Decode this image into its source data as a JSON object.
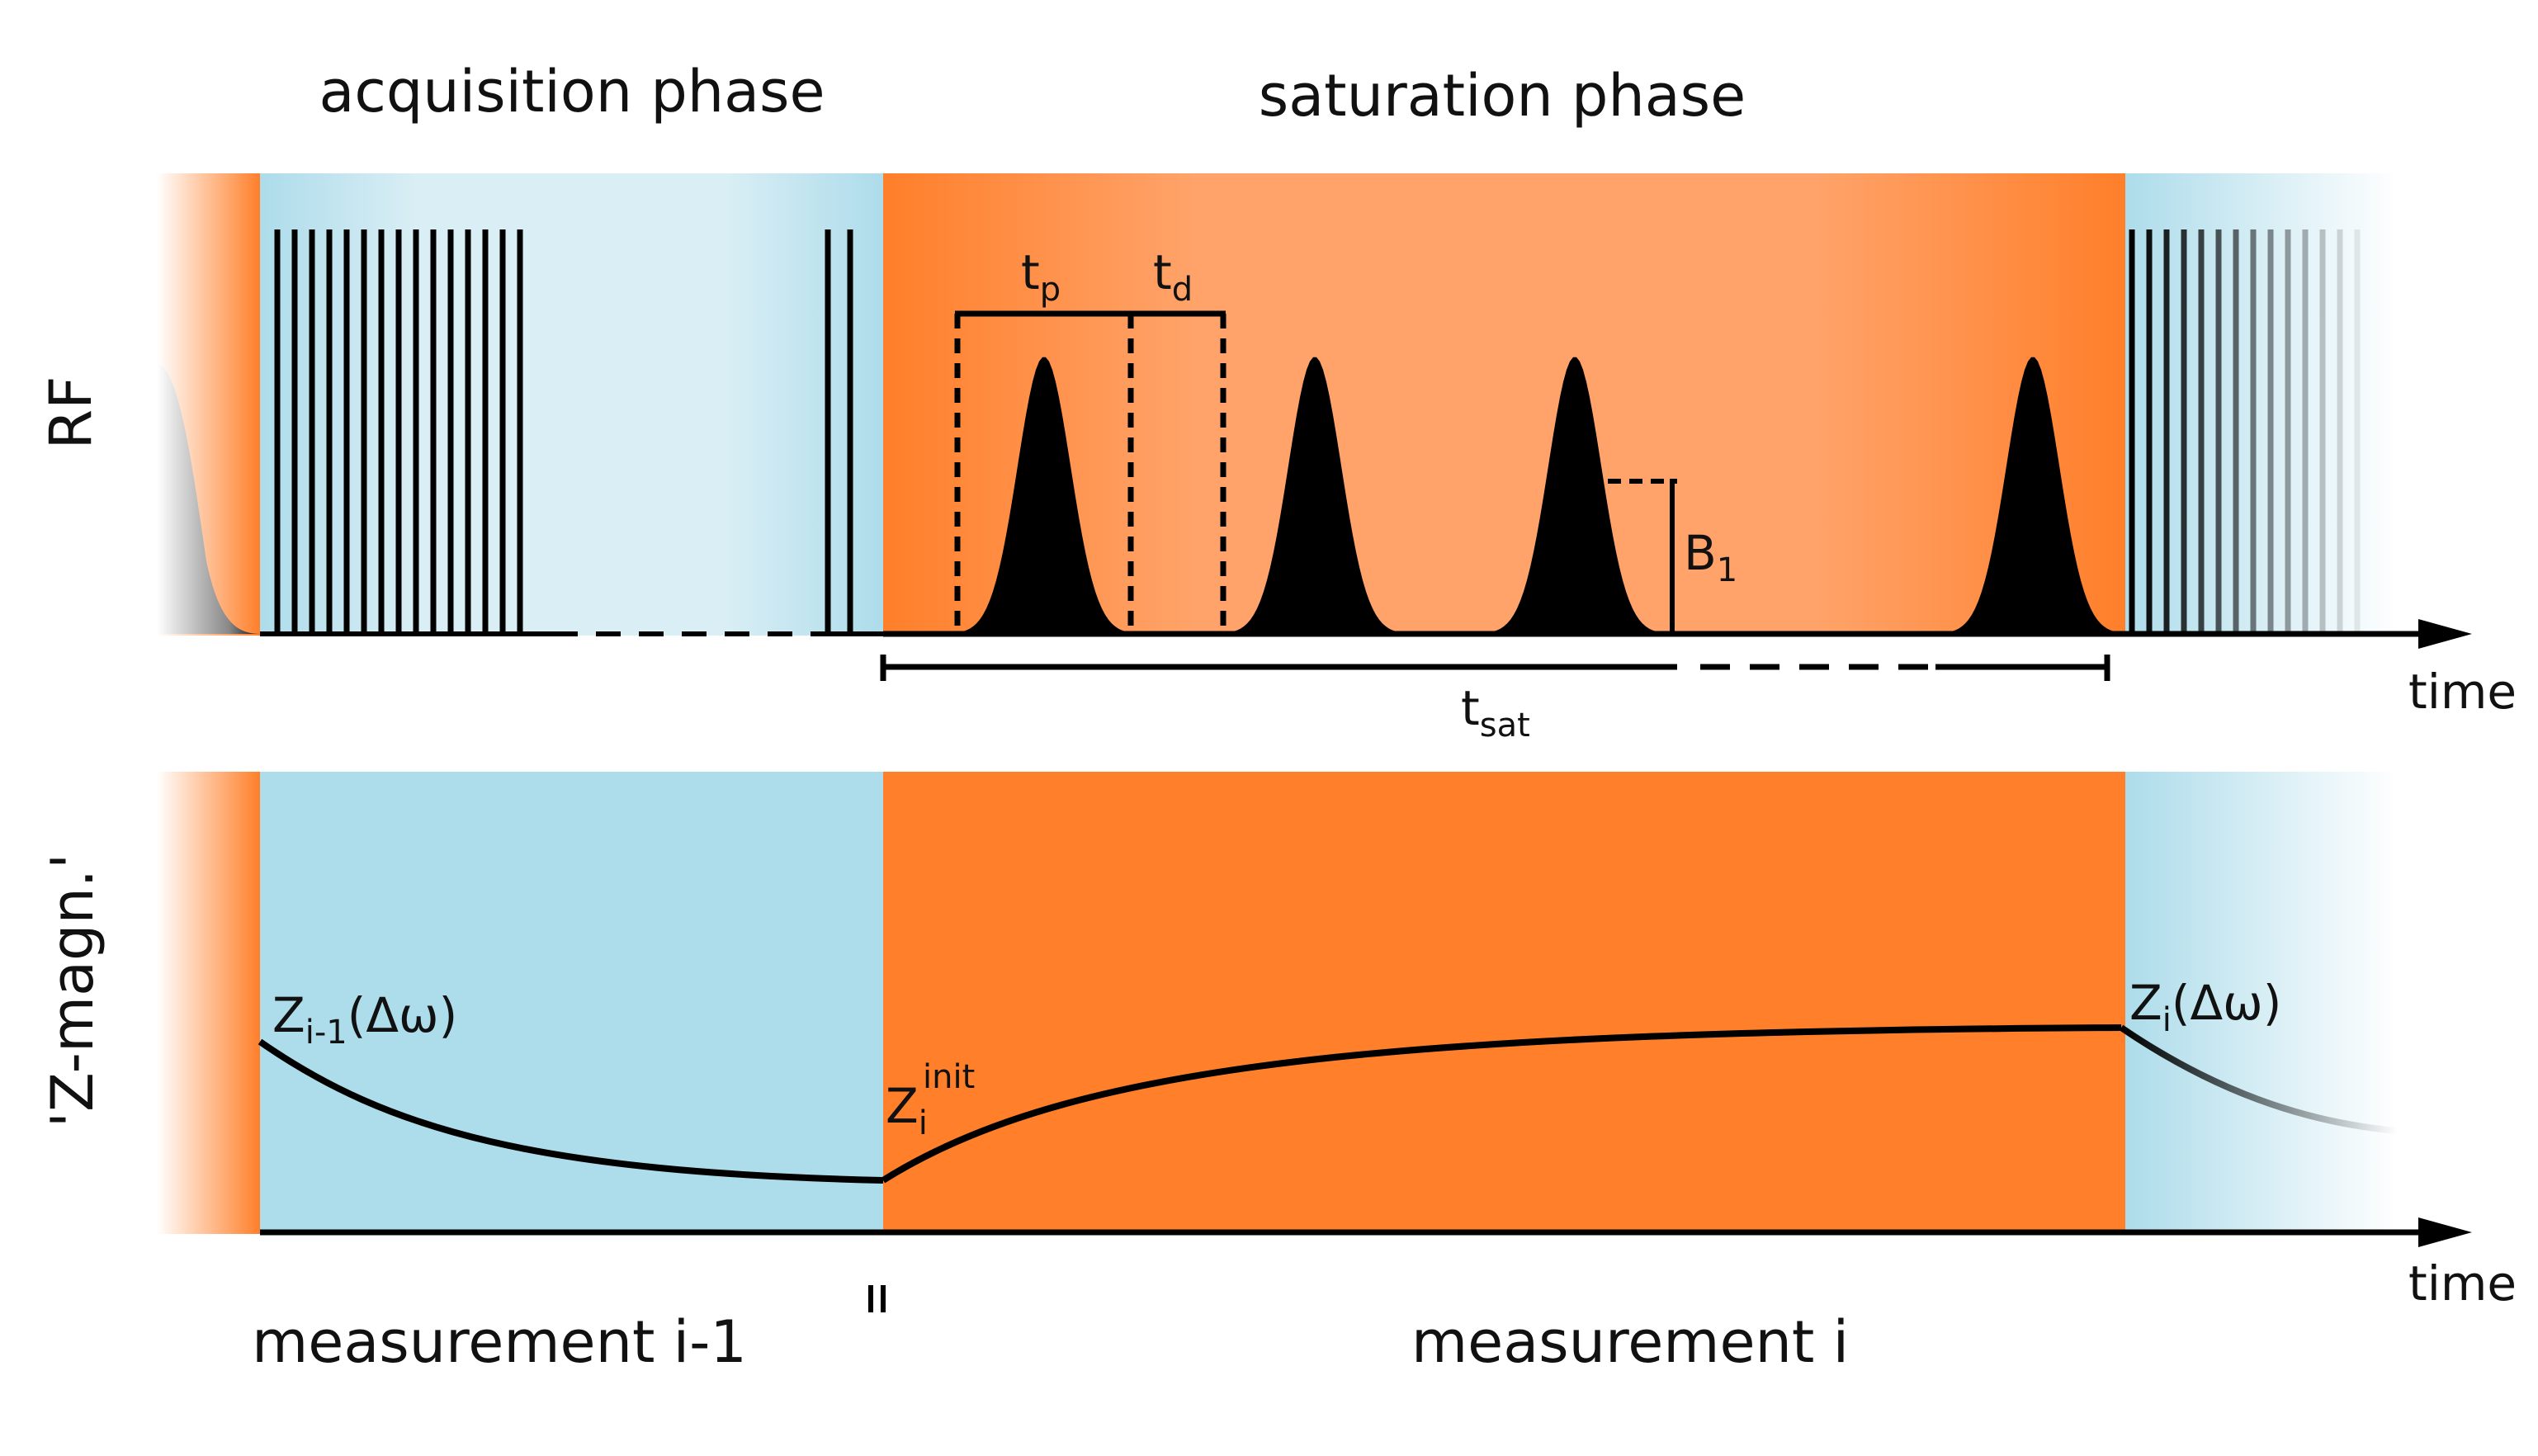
{
  "phases": {
    "acquisition": "acquisition phase",
    "saturation": "saturation phase"
  },
  "axes": {
    "rf": "RF",
    "z_magn": "'Z-magn.'",
    "time_top": "time",
    "time_bottom": "time"
  },
  "symbols": {
    "tp_base": "t",
    "tp_sub": "p",
    "td_base": "t",
    "td_sub": "d",
    "b1_base": "B",
    "b1_sub": "1",
    "tsat_base": "t",
    "tsat_sub": "sat"
  },
  "labels": {
    "z_prev_base": "Z",
    "z_prev_sub": "i-1",
    "z_prev_arg": "(Δω)",
    "z_init_base": "Z",
    "z_init_sub": "i",
    "z_init_sup": "init",
    "z_curr_base": "Z",
    "z_curr_sub": "i",
    "z_curr_arg": "(Δω)"
  },
  "measurements": {
    "previous": "measurement i-1",
    "current": "measurement i"
  },
  "colors": {
    "saturation": "#FF7F2A",
    "saturation_light": "#FFA36A",
    "acquisition": "#ADDCEA",
    "acquisition_light": "#D9EEF5",
    "line": "#000000"
  }
}
